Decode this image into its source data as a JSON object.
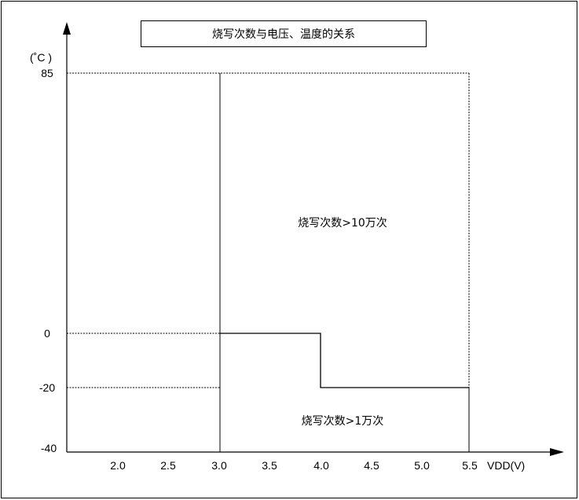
{
  "title": "烧写次数与电压、温度的关系",
  "y_axis": {
    "unit": "(˚C )",
    "ticks": [
      "85",
      "0",
      "-20",
      "-40"
    ]
  },
  "x_axis": {
    "label": "VDD(V)",
    "ticks": [
      "2.0",
      "2.5",
      "3.0",
      "3.5",
      "4.0",
      "4.5",
      "5.0",
      "5.5"
    ]
  },
  "regions": {
    "upper": "烧写次数>10万次",
    "lower": "烧写次数>1万次"
  }
}
